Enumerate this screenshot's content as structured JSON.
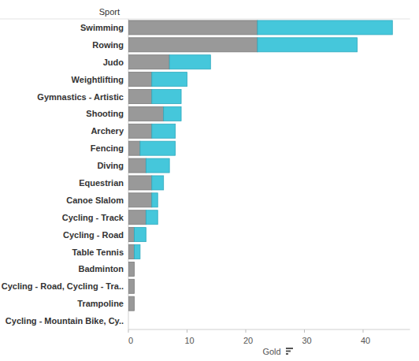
{
  "chart_data": {
    "type": "bar",
    "orientation": "horizontal",
    "stacked": true,
    "x_label": "Gold",
    "y_label": "Sport",
    "categories": [
      "Swimming",
      "Rowing",
      "Judo",
      "Weightlifting",
      "Gymnastics - Artistic",
      "Shooting",
      "Archery",
      "Fencing",
      "Diving",
      "Equestrian",
      "Canoe Slalom",
      "Cycling - Track",
      "Cycling - Road",
      "Table Tennis",
      "Badminton",
      "Cycling - Road, Cycling - Tra..",
      "Trampoline",
      "Cycling - Mountain Bike, Cy.."
    ],
    "series": [
      {
        "color": "#999999",
        "values": [
          22,
          22,
          7,
          4,
          4,
          6,
          4,
          2,
          3,
          4,
          4,
          3,
          1,
          1,
          1,
          1,
          1,
          0
        ]
      },
      {
        "color": "#45c7db",
        "values": [
          23,
          17,
          7,
          6,
          5,
          3,
          4,
          6,
          4,
          2,
          1,
          2,
          2,
          1,
          0,
          0,
          0,
          0
        ]
      }
    ],
    "xlim": [
      0,
      48
    ],
    "xticks": [
      0,
      10,
      20,
      30,
      40
    ],
    "grid": false
  }
}
